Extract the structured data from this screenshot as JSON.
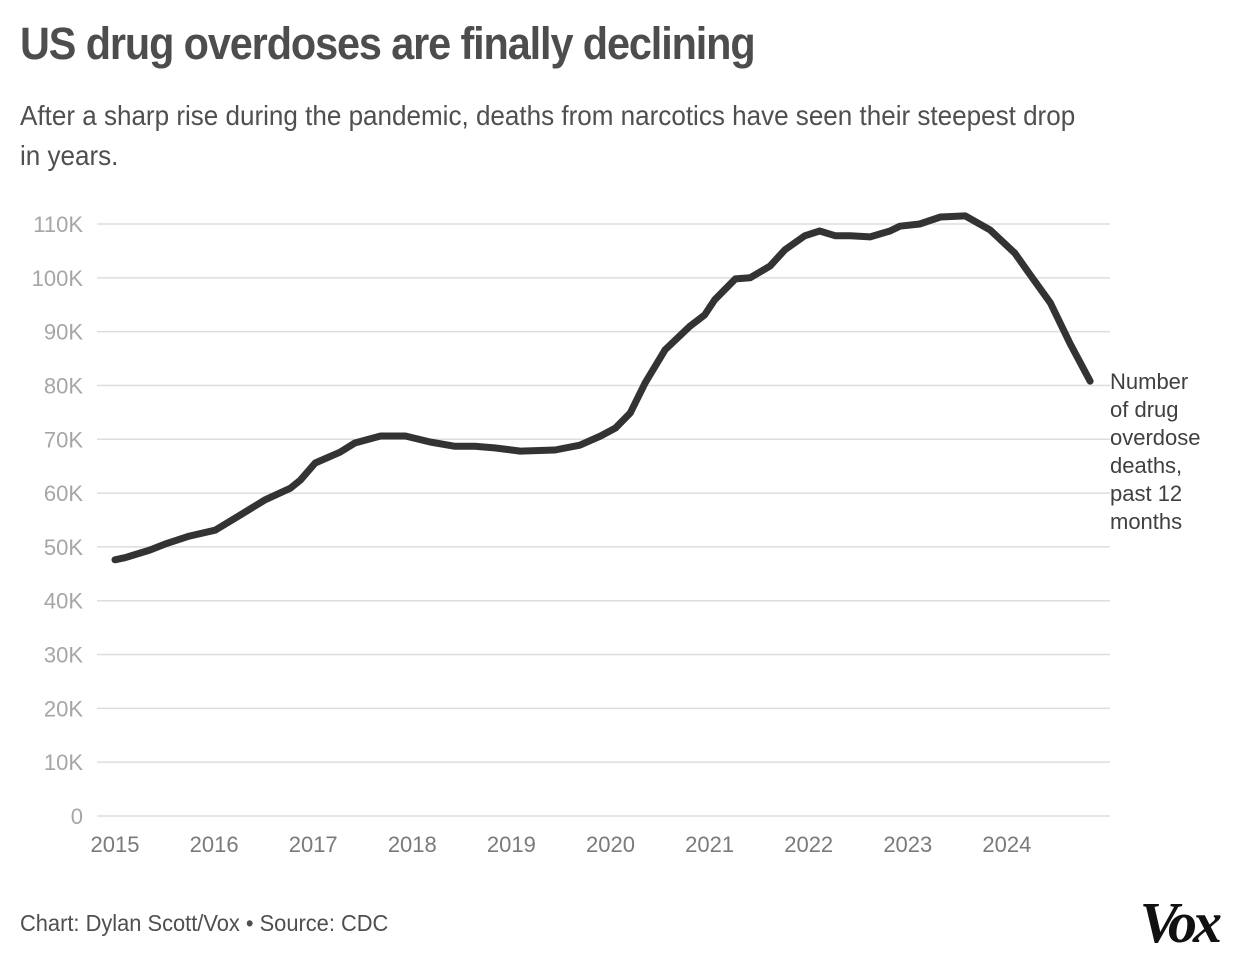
{
  "header": {
    "title": "US drug overdoses are finally declining",
    "subtitle": "After a sharp rise during the pandemic, deaths from narcotics have seen their steepest drop in years."
  },
  "footer": {
    "credit": "Chart: Dylan Scott/Vox • Source: CDC",
    "logo": "Vox"
  },
  "colors": {
    "line": "#333333",
    "grid": "#dddddd",
    "title": "#4d4d4d"
  },
  "chart_data": {
    "type": "line",
    "title": "US drug overdoses are finally declining",
    "subtitle": "After a sharp rise during the pandemic, deaths from narcotics have seen their steepest drop in years.",
    "xlabel": "",
    "ylabel": "",
    "xlim": [
      2015,
      2025
    ],
    "ylim": [
      0,
      110000
    ],
    "grid": true,
    "legend": "none",
    "x_ticks": [
      2015,
      2016,
      2017,
      2018,
      2019,
      2020,
      2021,
      2022,
      2023,
      2024
    ],
    "x_tick_labels": [
      "2015",
      "2016",
      "2017",
      "2018",
      "2019",
      "2020",
      "2021",
      "2022",
      "2023",
      "2024"
    ],
    "y_ticks": [
      0,
      10000,
      20000,
      30000,
      40000,
      50000,
      60000,
      70000,
      80000,
      90000,
      100000,
      110000
    ],
    "y_tick_labels": [
      "0",
      "10K",
      "20K",
      "30K",
      "40K",
      "50K",
      "60K",
      "70K",
      "80K",
      "90K",
      "100K",
      "110K"
    ],
    "series": [
      {
        "name": "Number of drug overdose deaths, past 12 months",
        "label_lines": [
          "Number",
          "of drug",
          "overdose",
          "deaths,",
          "past 12",
          "months"
        ],
        "x": [
          2015.0,
          2015.1,
          2015.35,
          2015.5,
          2015.75,
          2016.01,
          2016.26,
          2016.51,
          2016.77,
          2016.87,
          2017.02,
          2017.27,
          2017.42,
          2017.68,
          2017.93,
          2018.18,
          2018.43,
          2018.63,
          2018.83,
          2019.09,
          2019.44,
          2019.69,
          2019.9,
          2020.05,
          2020.2,
          2020.35,
          2020.55,
          2020.8,
          2020.95,
          2021.05,
          2021.26,
          2021.41,
          2021.61,
          2021.76,
          2021.96,
          2022.11,
          2022.27,
          2022.42,
          2022.62,
          2022.82,
          2022.92,
          2023.12,
          2023.33,
          2023.58,
          2023.83,
          2024.08,
          2024.23,
          2024.44,
          2024.64,
          2024.84
        ],
        "values": [
          47600,
          48000,
          49400,
          50500,
          52000,
          53100,
          55900,
          58700,
          60900,
          62400,
          65600,
          67600,
          69300,
          70600,
          70600,
          69500,
          68700,
          68700,
          68400,
          67800,
          68000,
          68900,
          70600,
          72100,
          74900,
          80500,
          86600,
          91000,
          93100,
          95900,
          99800,
          100000,
          102200,
          105200,
          107800,
          108700,
          107800,
          107800,
          107600,
          108700,
          109600,
          110000,
          111300,
          111500,
          108900,
          104600,
          100700,
          95300,
          87700,
          80800
        ]
      }
    ]
  }
}
